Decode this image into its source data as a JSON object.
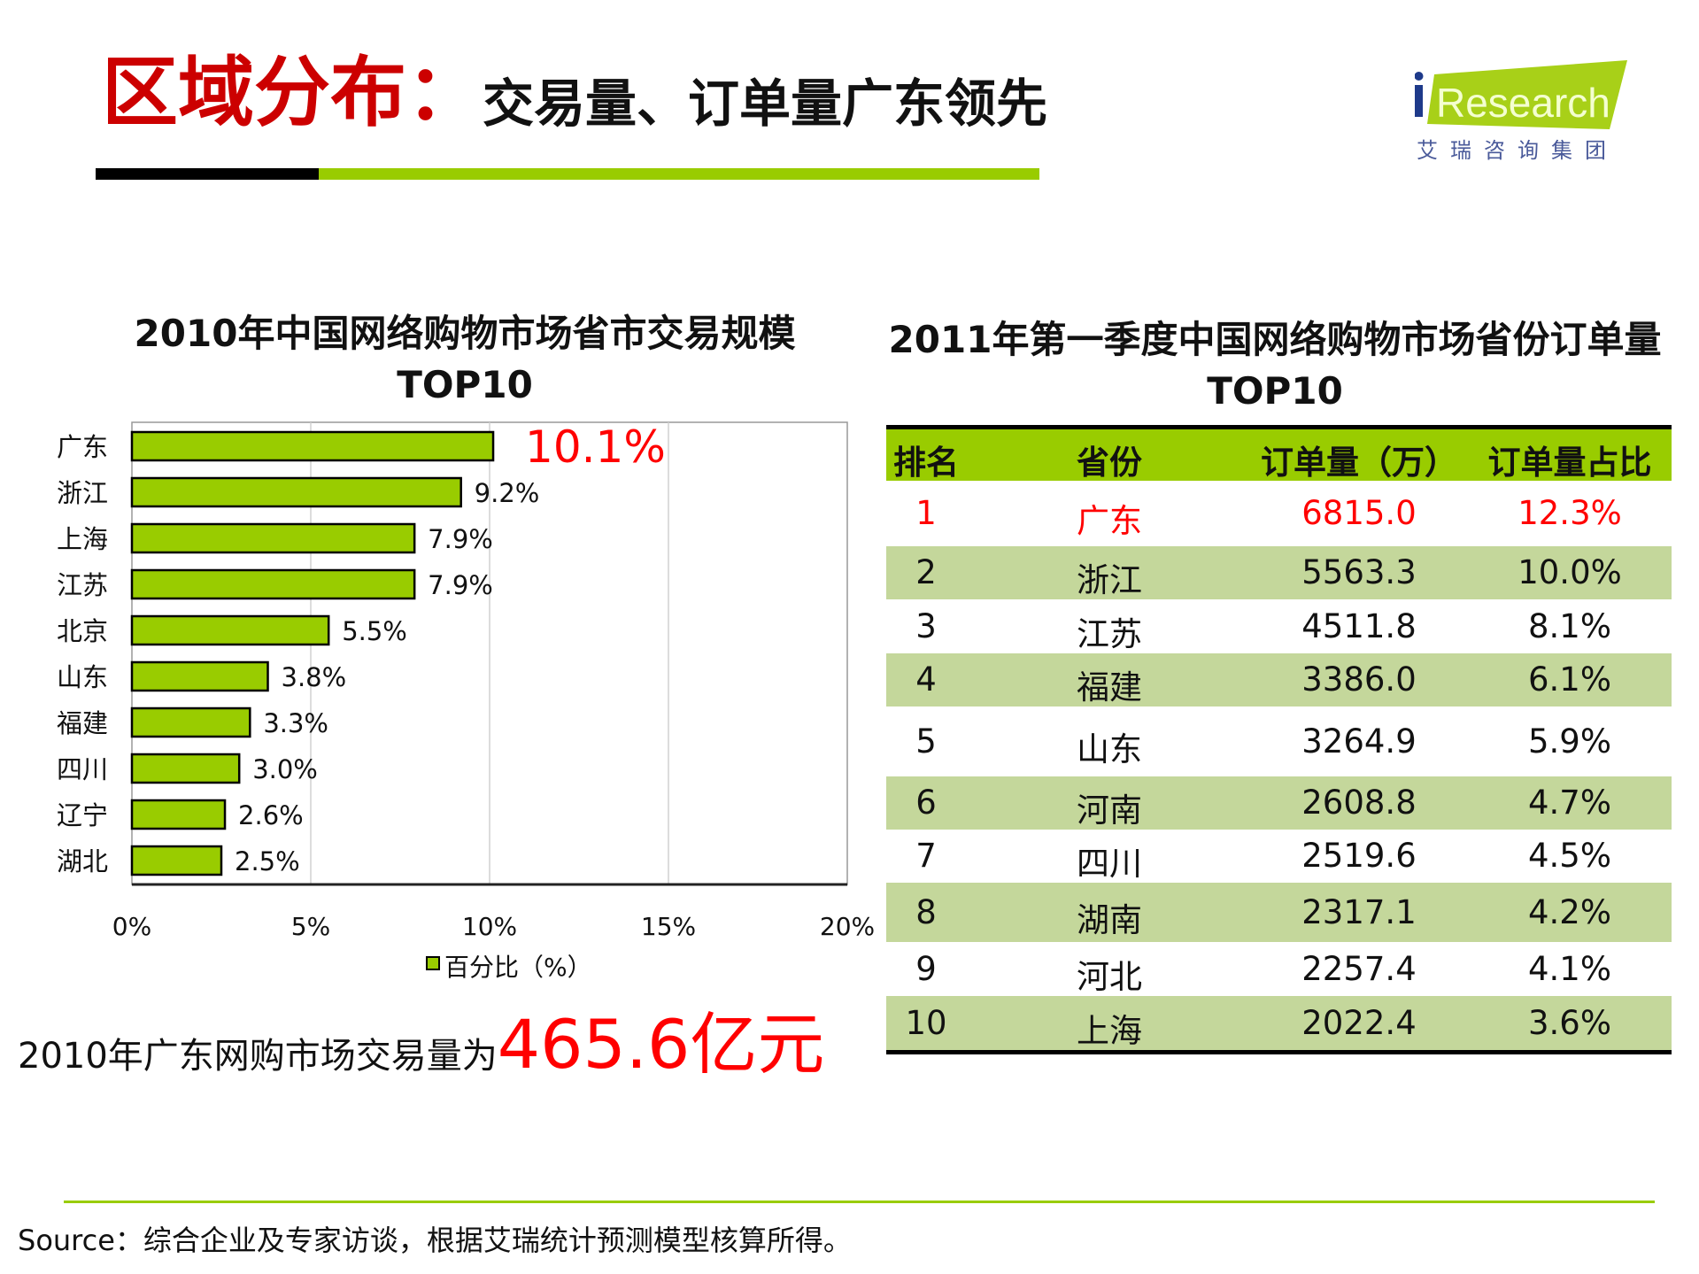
{
  "header": {
    "title_main": "区域分布：",
    "title_sub": "交易量、订单量广东领先"
  },
  "logo": {
    "text": "iResearch",
    "subtext": "艾瑞咨询集团",
    "colors": {
      "green": "#99cc00",
      "blue": "#1e3a8a"
    }
  },
  "chart_data": {
    "type": "bar",
    "orientation": "horizontal",
    "title": "2010年中国网络购物市场省市交易规模",
    "title_line2": "TOP10",
    "categories": [
      "广东",
      "浙江",
      "上海",
      "江苏",
      "北京",
      "山东",
      "福建",
      "四川",
      "辽宁",
      "湖北"
    ],
    "series": [
      {
        "name": "百分比（%）",
        "values": [
          10.1,
          9.2,
          7.9,
          7.9,
          5.5,
          3.8,
          3.3,
          3.0,
          2.6,
          2.5
        ]
      }
    ],
    "data_labels": [
      "10.1%",
      "9.2%",
      "7.9%",
      "7.9%",
      "5.5%",
      "3.8%",
      "3.3%",
      "3.0%",
      "2.6%",
      "2.5%"
    ],
    "highlight_index": 0,
    "highlight_color": "#ff0000",
    "xlim": [
      0,
      20
    ],
    "xticks": [
      "0%",
      "5%",
      "10%",
      "15%",
      "20%"
    ],
    "grid": true,
    "legend": "bottom",
    "bar_color": "#99cc00"
  },
  "note": {
    "text": "2010年广东网购市场交易量为",
    "value": "465.6亿元"
  },
  "table": {
    "title": "2011年第一季度中国网络购物市场省份订单量",
    "title_line2": "TOP10",
    "headers": [
      "排名",
      "省份",
      "订单量（万）",
      "订单量占比"
    ],
    "rows": [
      [
        "1",
        "广东",
        "6815.0",
        "12.3%"
      ],
      [
        "2",
        "浙江",
        "5563.3",
        "10.0%"
      ],
      [
        "3",
        "江苏",
        "4511.8",
        "8.1%"
      ],
      [
        "4",
        "福建",
        "3386.0",
        "6.1%"
      ],
      [
        "5",
        "山东",
        "3264.9",
        "5.9%"
      ],
      [
        "6",
        "河南",
        "2608.8",
        "4.7%"
      ],
      [
        "7",
        "四川",
        "2519.6",
        "4.5%"
      ],
      [
        "8",
        "湖南",
        "2317.1",
        "4.2%"
      ],
      [
        "9",
        "河北",
        "2257.4",
        "4.1%"
      ],
      [
        "10",
        "上海",
        "2022.4",
        "3.6%"
      ]
    ],
    "colors": {
      "header": "#99cc00",
      "stripe": "#c4d79b",
      "highlight_text": "#ff0000"
    }
  },
  "footer": {
    "source": "Source：综合企业及专家访谈，根据艾瑞统计预测模型核算所得。"
  }
}
